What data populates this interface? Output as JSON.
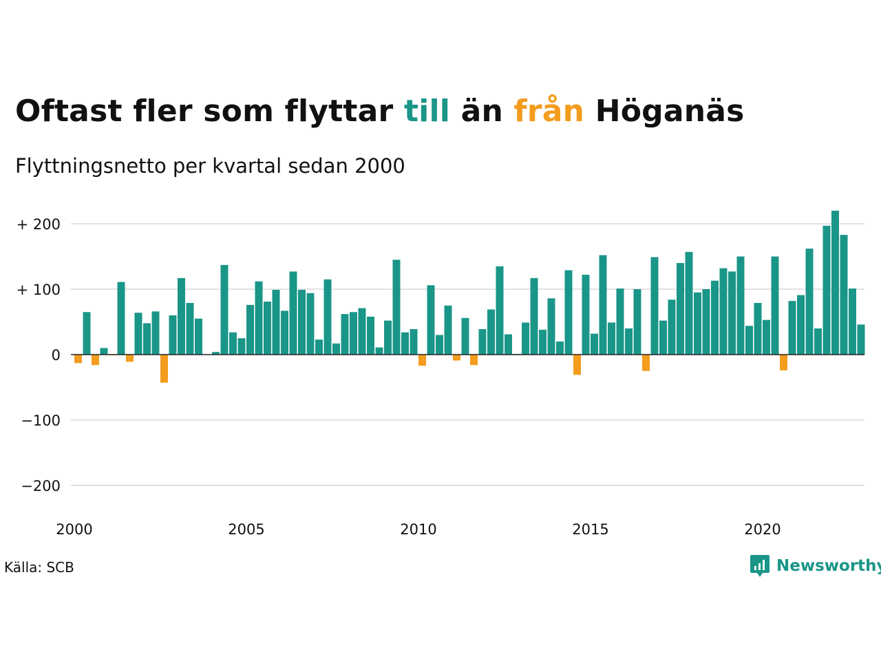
{
  "title": {
    "part1": "Oftast fler som flyttar ",
    "highlight_in": "till",
    "part2": " än ",
    "highlight_out": "från",
    "part3": " Höganäs",
    "color_in": "#1a9688",
    "color_out": "#f39c1d"
  },
  "subtitle": "Flyttningsnetto per kvartal sedan 2000",
  "source": "Källa: SCB",
  "logo": {
    "text": "Newsworthy",
    "icon": "newsworthy-chart-icon"
  },
  "chart_data": {
    "type": "bar",
    "x_start_year": 2000,
    "periods_per_year": 4,
    "xticks": [
      2000,
      2005,
      2010,
      2015,
      2020
    ],
    "xtick_labels": [
      "2000",
      "2005",
      "2010",
      "2015",
      "2020"
    ],
    "yticks": [
      200,
      100,
      0,
      -100,
      -200
    ],
    "ytick_labels": [
      "+ 200",
      "+ 100",
      "0",
      "−100",
      "−200"
    ],
    "ylim": [
      -200,
      200
    ],
    "grid": true,
    "positive_color": "#1a9688",
    "negative_color": "#f39c1d",
    "values": [
      -13,
      65,
      -16,
      10,
      -1,
      111,
      -11,
      64,
      48,
      66,
      -43,
      60,
      117,
      79,
      55,
      0,
      4,
      137,
      34,
      25,
      76,
      112,
      81,
      99,
      67,
      127,
      99,
      94,
      23,
      115,
      17,
      62,
      65,
      71,
      58,
      11,
      52,
      145,
      34,
      39,
      -17,
      106,
      30,
      75,
      -9,
      56,
      -16,
      39,
      69,
      135,
      31,
      1,
      49,
      117,
      38,
      86,
      20,
      129,
      -31,
      122,
      32,
      152,
      49,
      101,
      40,
      100,
      -25,
      149,
      52,
      84,
      140,
      157,
      95,
      100,
      113,
      132,
      127,
      150,
      44,
      79,
      53,
      150,
      -24,
      82,
      91,
      162,
      40,
      197,
      220,
      183,
      101,
      46
    ]
  }
}
